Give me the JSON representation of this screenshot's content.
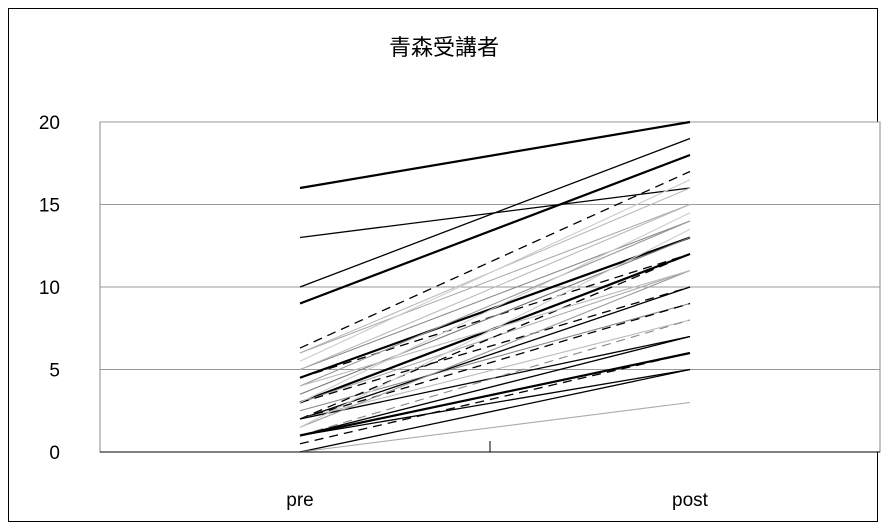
{
  "chart_data": {
    "type": "line",
    "title": "青森受講者",
    "categories": [
      "pre",
      "post"
    ],
    "ylim": [
      0,
      20
    ],
    "yticks": [
      0,
      5,
      10,
      15,
      20
    ],
    "grid": "horizontal",
    "legend": "none",
    "series": [
      {
        "values": [
          16,
          20
        ],
        "style": "solid-bold",
        "color": "#000000"
      },
      {
        "values": [
          13,
          16
        ],
        "style": "solid",
        "color": "#000000"
      },
      {
        "values": [
          10,
          19
        ],
        "style": "solid",
        "color": "#000000"
      },
      {
        "values": [
          9,
          18
        ],
        "style": "solid-bold",
        "color": "#000000"
      },
      {
        "values": [
          6.3,
          17
        ],
        "style": "dashed",
        "color": "#000000"
      },
      {
        "values": [
          6,
          16
        ],
        "style": "solid",
        "color": "#bbbbbb"
      },
      {
        "values": [
          6,
          15
        ],
        "style": "solid",
        "color": "#aaaaaa"
      },
      {
        "values": [
          5,
          14
        ],
        "style": "solid",
        "color": "#888888"
      },
      {
        "values": [
          5,
          15
        ],
        "style": "solid",
        "color": "#bbbbbb"
      },
      {
        "values": [
          4.5,
          13
        ],
        "style": "solid-bold",
        "color": "#000000"
      },
      {
        "values": [
          4.5,
          12
        ],
        "style": "dashed",
        "color": "#000000"
      },
      {
        "values": [
          4,
          14
        ],
        "style": "solid",
        "color": "#999999"
      },
      {
        "values": [
          3.5,
          13
        ],
        "style": "solid",
        "color": "#777777"
      },
      {
        "values": [
          3,
          12
        ],
        "style": "solid-bold",
        "color": "#000000"
      },
      {
        "values": [
          3,
          11
        ],
        "style": "solid",
        "color": "#aaaaaa"
      },
      {
        "values": [
          3,
          10
        ],
        "style": "dashed",
        "color": "#000000"
      },
      {
        "values": [
          2.5,
          9
        ],
        "style": "solid",
        "color": "#888888"
      },
      {
        "values": [
          2,
          12
        ],
        "style": "dashed",
        "color": "#000000"
      },
      {
        "values": [
          2,
          10
        ],
        "style": "solid",
        "color": "#000000"
      },
      {
        "values": [
          2,
          9
        ],
        "style": "dashed",
        "color": "#000000"
      },
      {
        "values": [
          2,
          8
        ],
        "style": "solid",
        "color": "#bbbbbb"
      },
      {
        "values": [
          2,
          7
        ],
        "style": "solid",
        "color": "#000000"
      },
      {
        "values": [
          1.5,
          11
        ],
        "style": "solid",
        "color": "#999999"
      },
      {
        "values": [
          1,
          8
        ],
        "style": "dashed",
        "color": "#888888"
      },
      {
        "values": [
          1,
          6
        ],
        "style": "solid-bold",
        "color": "#000000"
      },
      {
        "values": [
          1,
          5
        ],
        "style": "solid",
        "color": "#000000"
      },
      {
        "values": [
          1,
          7
        ],
        "style": "solid",
        "color": "#000000"
      },
      {
        "values": [
          0.5,
          6
        ],
        "style": "dashed",
        "color": "#000000"
      },
      {
        "values": [
          0,
          5
        ],
        "style": "solid",
        "color": "#000000"
      },
      {
        "values": [
          0,
          3
        ],
        "style": "solid",
        "color": "#aaaaaa"
      },
      {
        "values": [
          3,
          14.5
        ],
        "style": "solid",
        "color": "#cccccc"
      },
      {
        "values": [
          5.5,
          16.5
        ],
        "style": "solid",
        "color": "#cccccc"
      },
      {
        "values": [
          4,
          11
        ],
        "style": "solid",
        "color": "#bbbbbb"
      },
      {
        "values": [
          1.5,
          13.5
        ],
        "style": "solid",
        "color": "#cccccc"
      }
    ]
  }
}
